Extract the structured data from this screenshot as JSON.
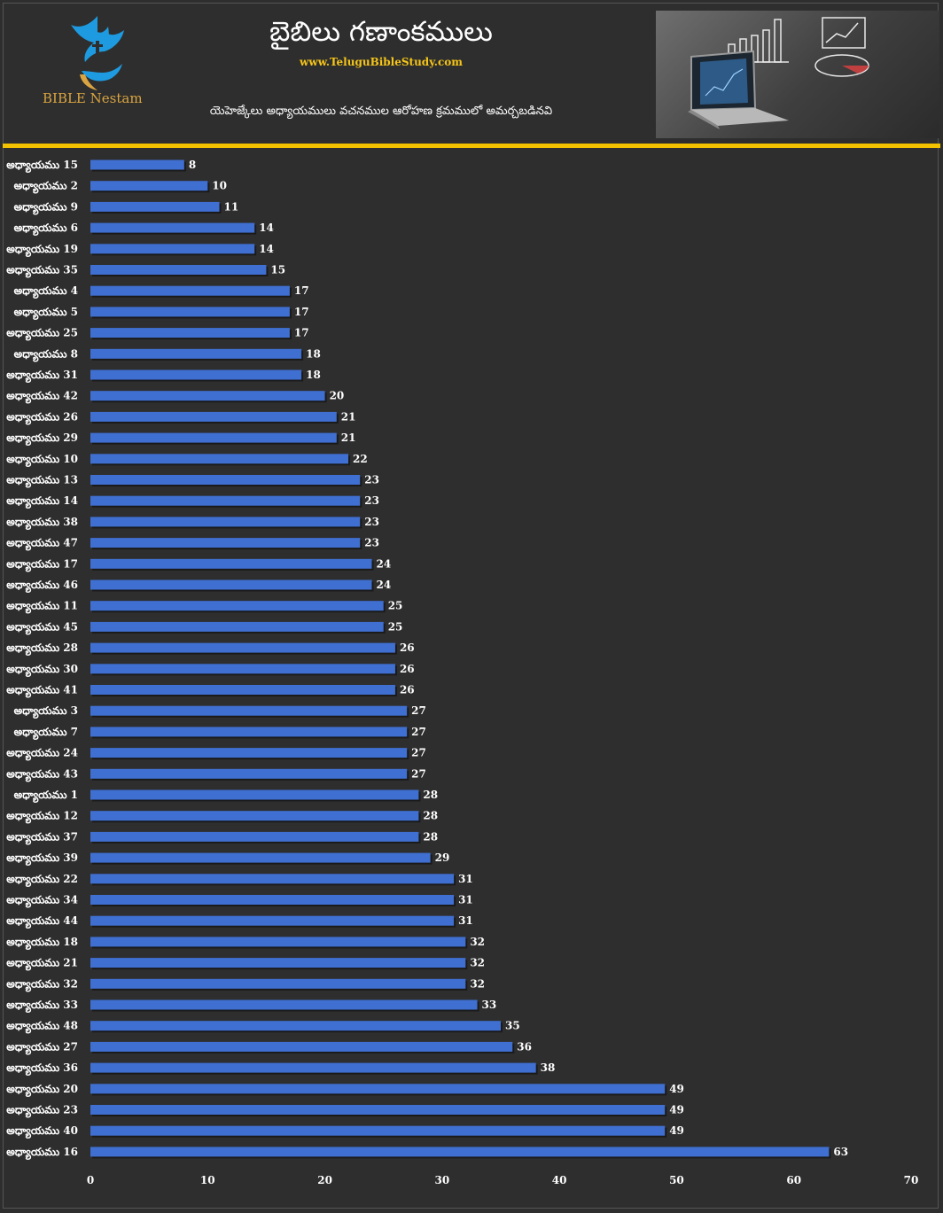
{
  "header": {
    "title": "బైబిలు గణాంకములు",
    "website": "www.TeluguBibleStudy.com",
    "subtitle": "యెహెజ్కేలు అధ్యాయములు వచనముల ఆరోహణ క్రమములో అమర్చబడినవి",
    "logo_text": "BIBLE Nestam"
  },
  "colors": {
    "background": "#2e2e2e",
    "bar": "#3f6fd1",
    "accent_rule": "#f2c200",
    "logo_blue": "#1e9be0",
    "logo_gold": "#d9a441"
  },
  "chart_data": {
    "type": "bar",
    "orientation": "horizontal",
    "categories": [
      "అధ్యాయము 15",
      "అధ్యాయము 2",
      "అధ్యాయము 9",
      "అధ్యాయము 6",
      "అధ్యాయము 19",
      "అధ్యాయము 35",
      "అధ్యాయము 4",
      "అధ్యాయము 5",
      "అధ్యాయము 25",
      "అధ్యాయము 8",
      "అధ్యాయము 31",
      "అధ్యాయము 42",
      "అధ్యాయము 26",
      "అధ్యాయము 29",
      "అధ్యాయము 10",
      "అధ్యాయము 13",
      "అధ్యాయము 14",
      "అధ్యాయము 38",
      "అధ్యాయము 47",
      "అధ్యాయము 17",
      "అధ్యాయము 46",
      "అధ్యాయము 11",
      "అధ్యాయము 45",
      "అధ్యాయము 28",
      "అధ్యాయము 30",
      "అధ్యాయము 41",
      "అధ్యాయము 3",
      "అధ్యాయము 7",
      "అధ్యాయము 24",
      "అధ్యాయము 43",
      "అధ్యాయము 1",
      "అధ్యాయము 12",
      "అధ్యాయము 37",
      "అధ్యాయము 39",
      "అధ్యాయము 22",
      "అధ్యాయము 34",
      "అధ్యాయము 44",
      "అధ్యాయము 18",
      "అధ్యాయము 21",
      "అధ్యాయము 32",
      "అధ్యాయము 33",
      "అధ్యాయము 48",
      "అధ్యాయము 27",
      "అధ్యాయము 36",
      "అధ్యాయము 20",
      "అధ్యాయము 23",
      "అధ్యాయము 40",
      "అధ్యాయము 16"
    ],
    "values": [
      8,
      10,
      11,
      14,
      14,
      15,
      17,
      17,
      17,
      18,
      18,
      20,
      21,
      21,
      22,
      23,
      23,
      23,
      23,
      24,
      24,
      25,
      25,
      26,
      26,
      26,
      27,
      27,
      27,
      27,
      28,
      28,
      28,
      29,
      31,
      31,
      31,
      32,
      32,
      32,
      33,
      35,
      36,
      38,
      49,
      49,
      49,
      63
    ],
    "xlim": [
      0,
      70
    ],
    "xticks": [
      0,
      10,
      20,
      30,
      40,
      50,
      60,
      70
    ],
    "data_labels": true,
    "grid": false,
    "legend": "none"
  }
}
